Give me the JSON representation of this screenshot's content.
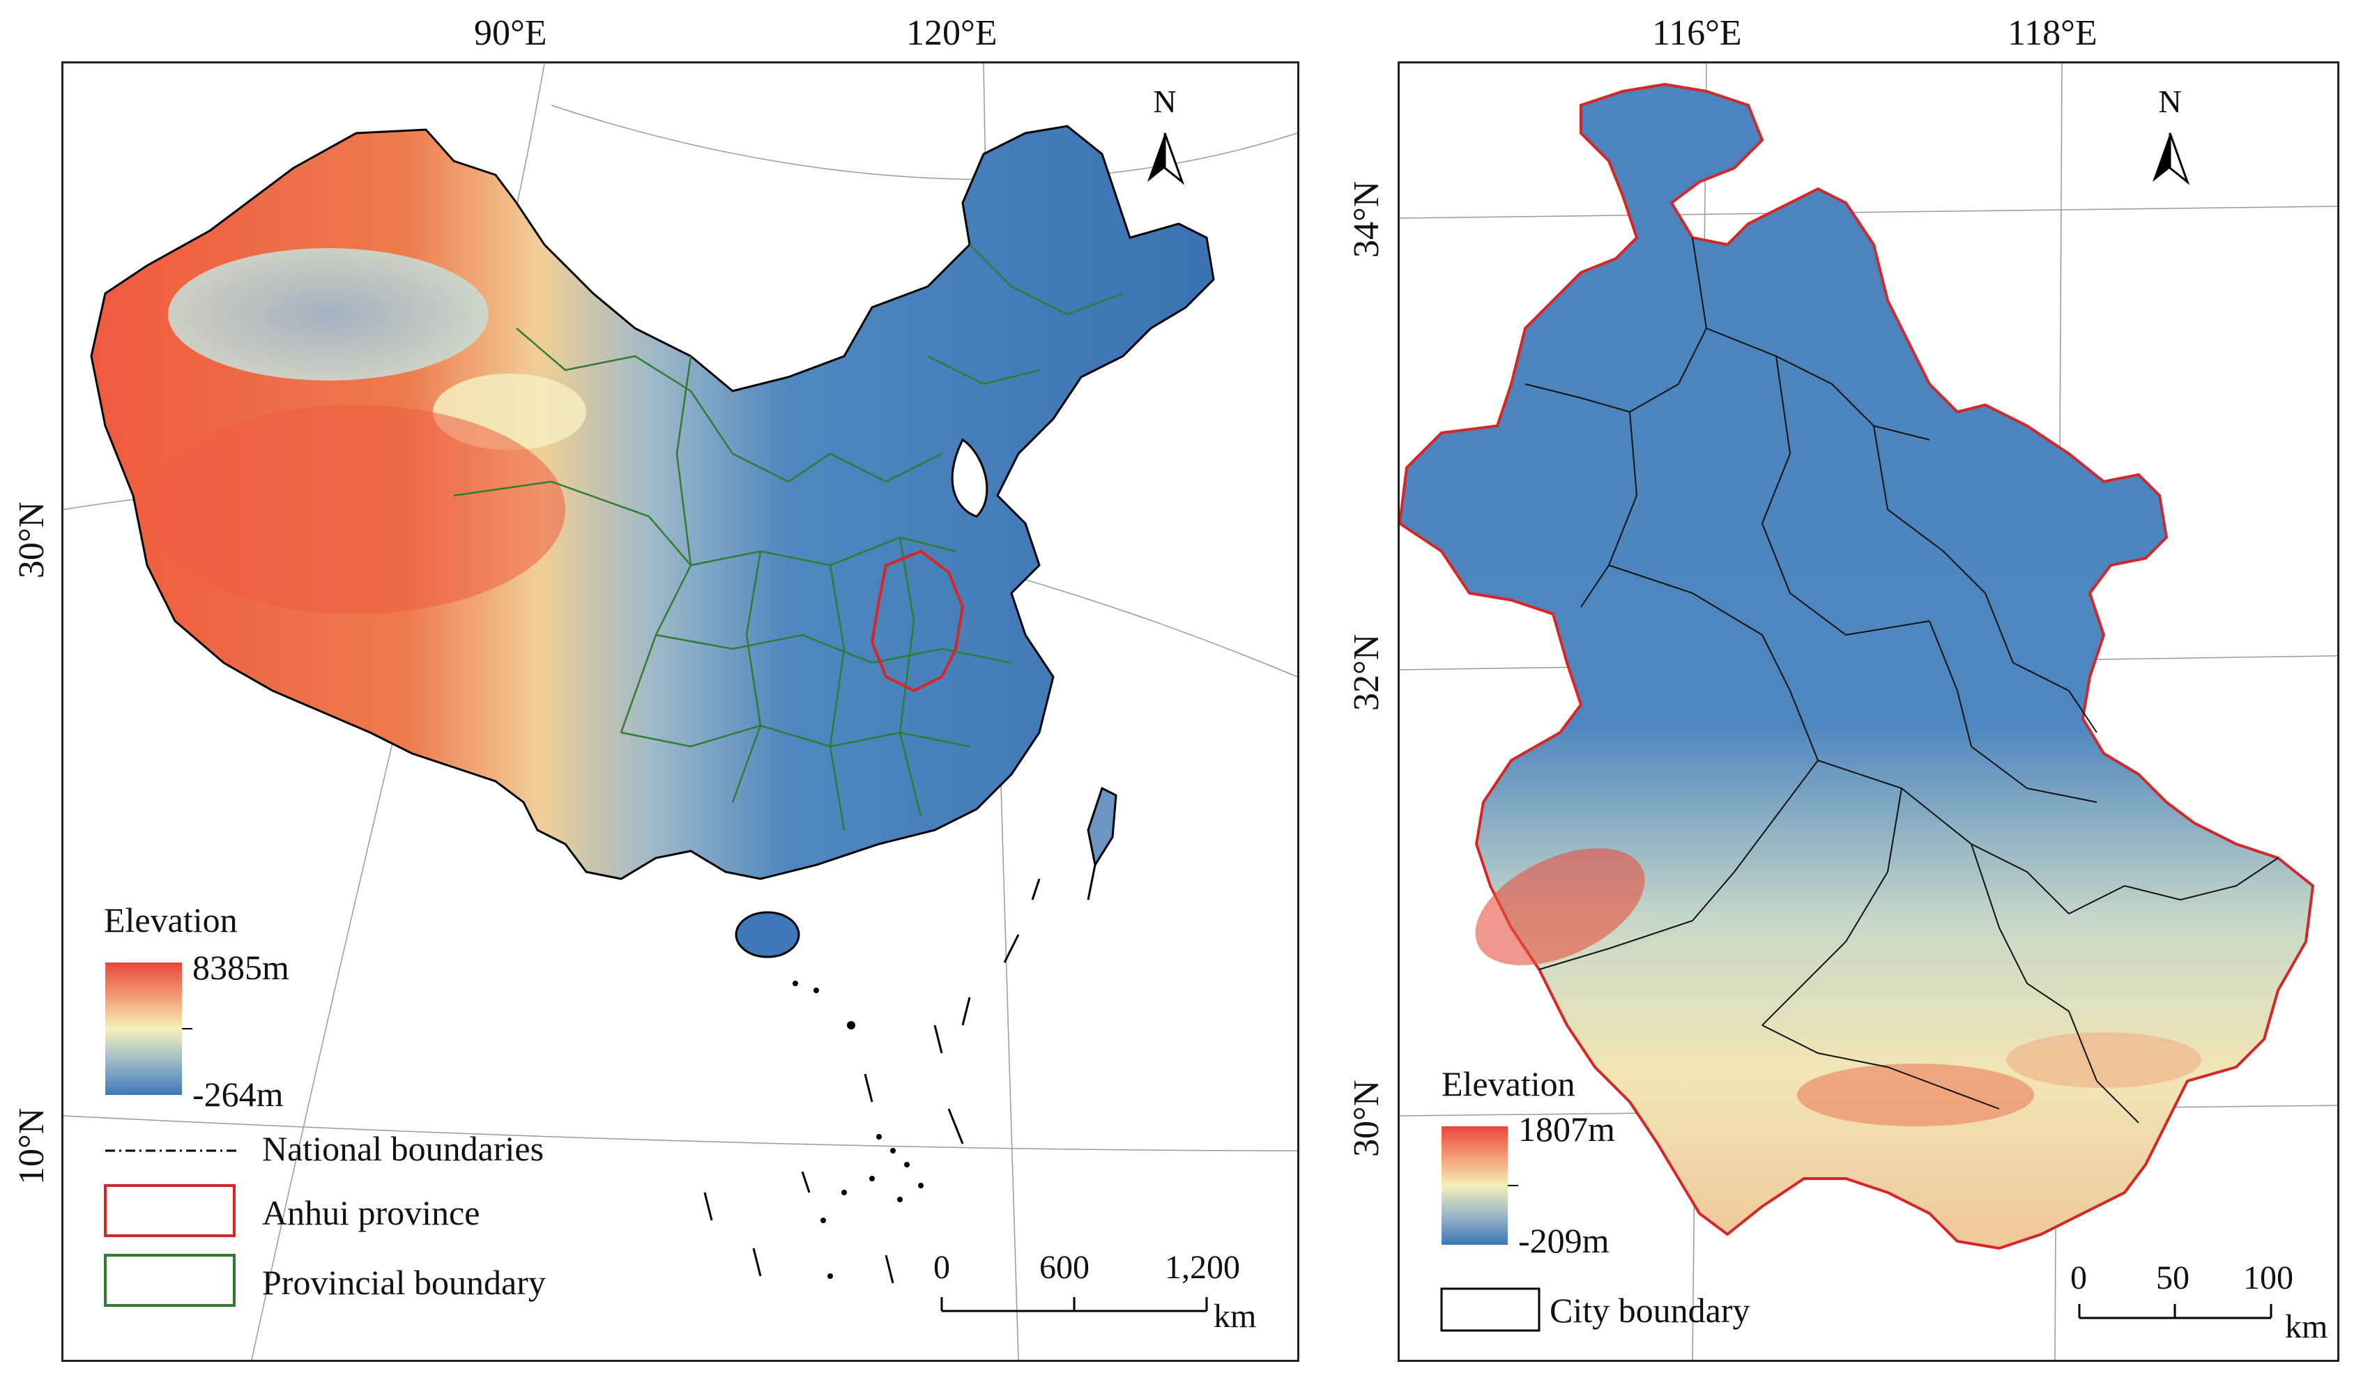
{
  "left_map": {
    "graticule_top": [
      "90°E",
      "120°E"
    ],
    "graticule_left": [
      "30°N",
      "10°N"
    ],
    "north_label": "N",
    "legend": {
      "title": "Elevation",
      "max": "8385m",
      "min": "-264m",
      "items": [
        {
          "label": "National boundaries",
          "style": "dash-dot",
          "color": "#000000"
        },
        {
          "label": "Anhui province",
          "style": "box",
          "color": "#d62728"
        },
        {
          "label": "Provincial boundary",
          "style": "box",
          "color": "#2e7d32"
        }
      ]
    },
    "scale": {
      "ticks": [
        "0",
        "600",
        "1,200"
      ],
      "unit": "km"
    }
  },
  "right_map": {
    "graticule_top": [
      "116°E",
      "118°E"
    ],
    "graticule_left": [
      "34°N",
      "32°N",
      "30°N"
    ],
    "north_label": "N",
    "legend": {
      "title": "Elevation",
      "max": "1807m",
      "min": "-209m",
      "items": [
        {
          "label": "City boundary",
          "style": "box",
          "color": "#000000"
        }
      ]
    },
    "scale": {
      "ticks": [
        "0",
        "50",
        "100"
      ],
      "unit": "km"
    }
  },
  "colors": {
    "elev_high": "#e8473a",
    "elev_mid": "#f5f0b8",
    "elev_low": "#3e78b8",
    "anhui_outline": "#d62728",
    "provincial": "#2e7d32"
  }
}
